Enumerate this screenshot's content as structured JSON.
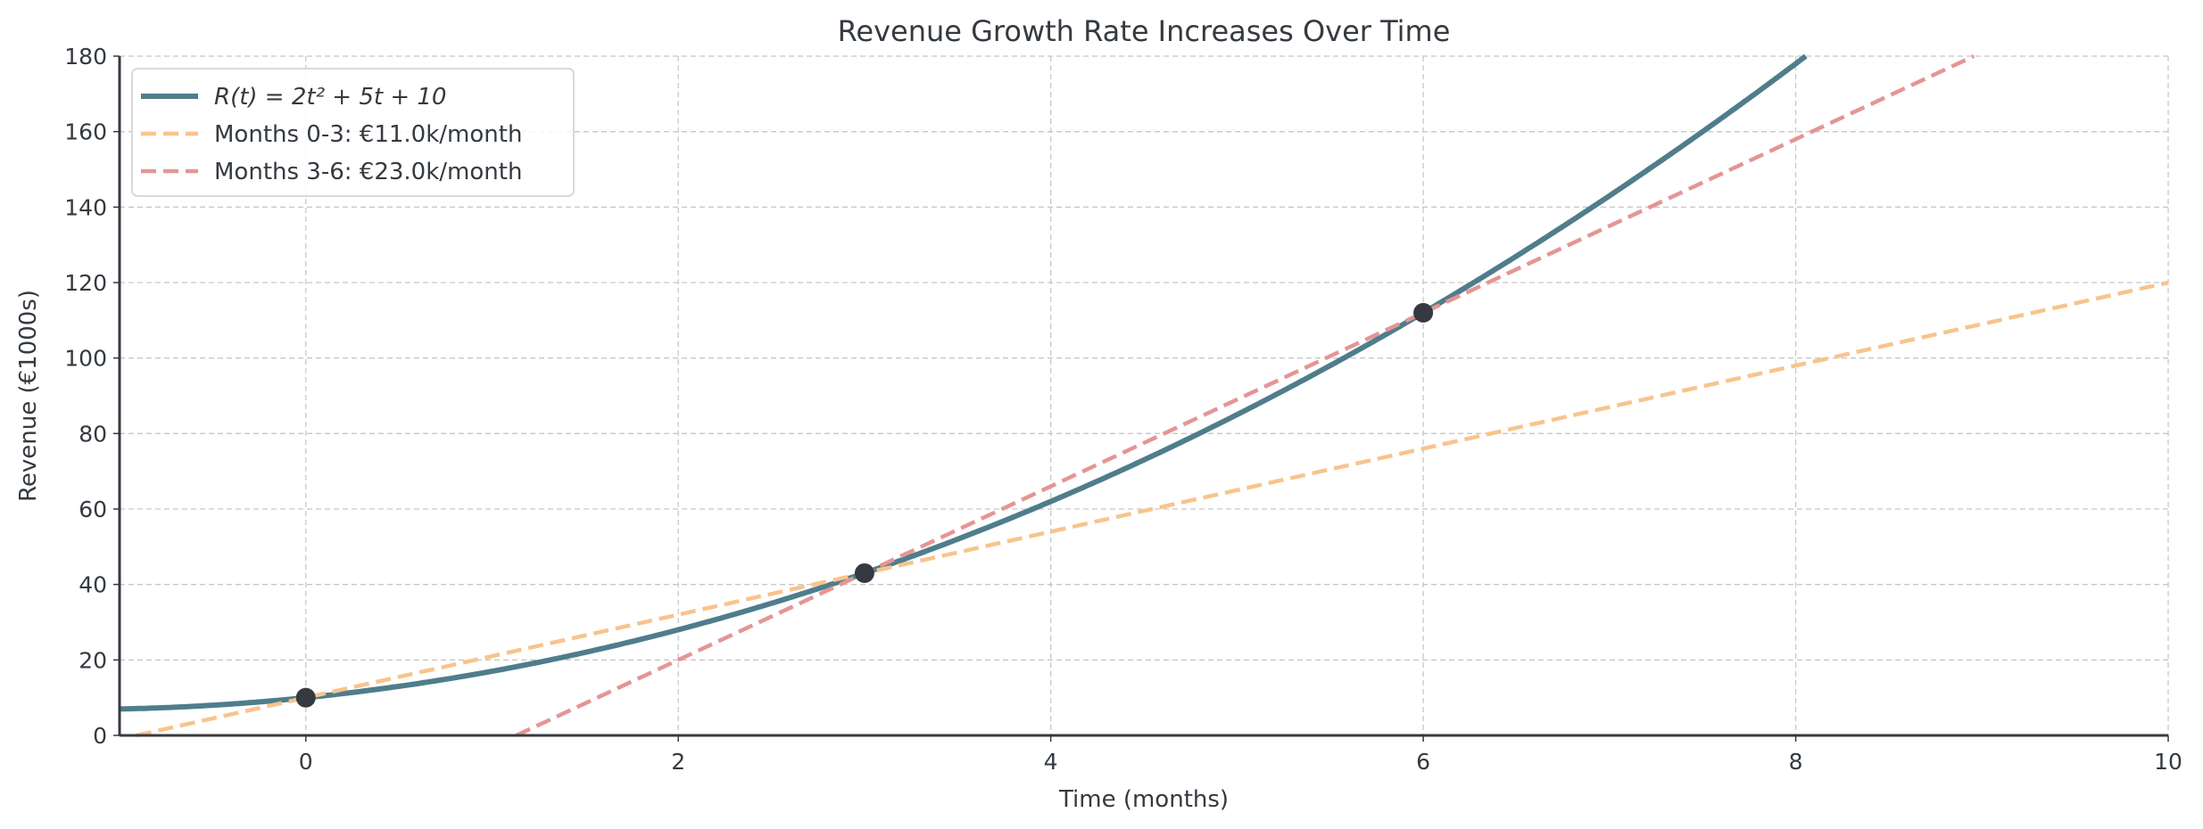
{
  "chart_data": {
    "type": "line",
    "title": "Revenue Growth Rate Increases Over Time",
    "xlabel": "Time (months)",
    "ylabel": "Revenue (€1000s)",
    "xlim": [
      -1,
      10
    ],
    "ylim": [
      0,
      180
    ],
    "xticks": [
      0,
      2,
      4,
      6,
      8,
      10
    ],
    "yticks": [
      0,
      20,
      40,
      60,
      80,
      100,
      120,
      140,
      160,
      180
    ],
    "grid": true,
    "legend_placement": "top-left",
    "series": [
      {
        "name": "R(t) = 2t² + 5t + 10",
        "kind": "curve",
        "coefficients": [
          2,
          5,
          10
        ],
        "color": "#4f7d8c",
        "style": "solid"
      },
      {
        "name": "Months 0-3: €11.0k/month",
        "kind": "line",
        "slope": 11,
        "intercept": 10,
        "color": "#f8c48c",
        "style": "dashed"
      },
      {
        "name": "Months 3-6: €23.0k/month",
        "kind": "line",
        "slope": 23,
        "intercept": -26,
        "color": "#e59595",
        "style": "dashed"
      }
    ],
    "points": [
      {
        "x": 0,
        "y": 10
      },
      {
        "x": 3,
        "y": 43
      },
      {
        "x": 6,
        "y": 112
      }
    ],
    "point_color": "#343a40"
  }
}
